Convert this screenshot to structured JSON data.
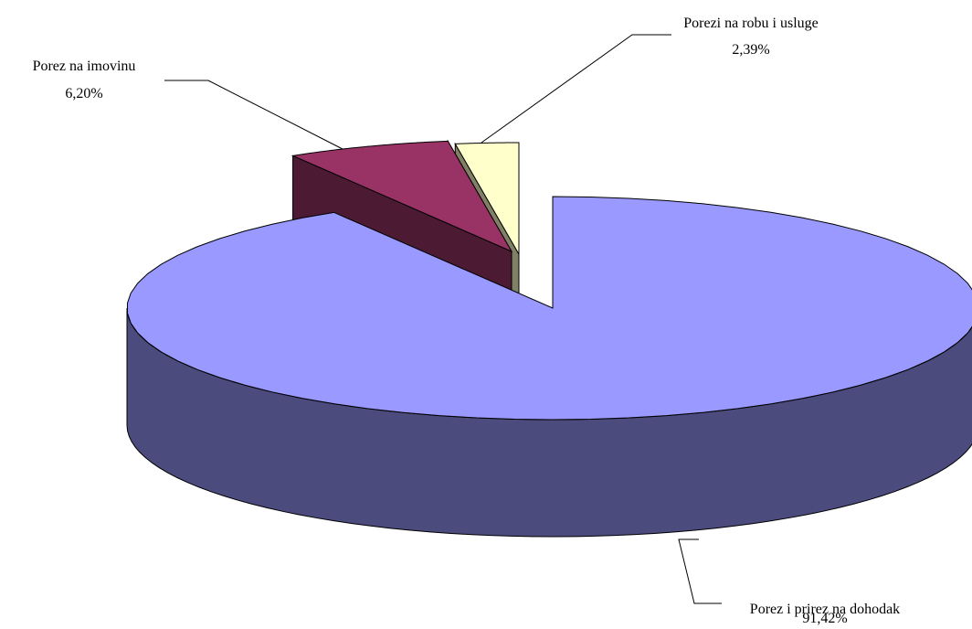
{
  "chart_data": {
    "type": "pie",
    "variant": "3d-exploded",
    "title": "",
    "slices": [
      {
        "label": "Porez i prirez na dohodak",
        "value": 91.42,
        "value_label": "91,42%",
        "top_color": "#9999FF",
        "side_color": "#4B4B7E"
      },
      {
        "label": "Porez na imovinu",
        "value": 6.2,
        "value_label": "6,20%",
        "top_color": "#993366",
        "side_color": "#4C1A33"
      },
      {
        "label": "Porezi na robu i usluge",
        "value": 2.39,
        "value_label": "2,39%",
        "top_color": "#FFFFCC",
        "side_color": "#808066"
      }
    ],
    "legend": "none",
    "data_labels": "outside-with-leader-lines"
  }
}
